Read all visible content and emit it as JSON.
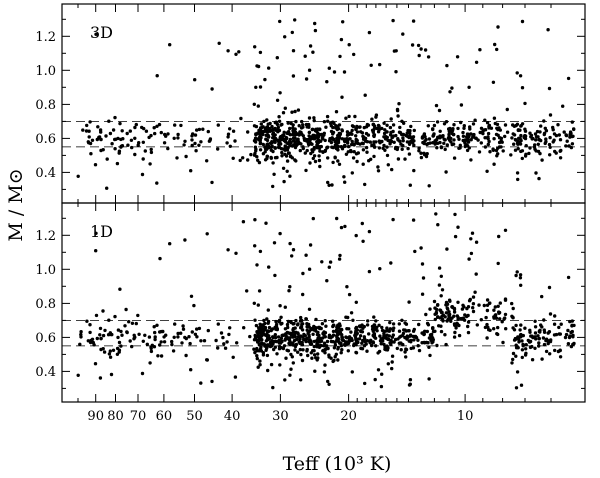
{
  "chart_data": {
    "type": "scatter",
    "panels": [
      {
        "label": "3D",
        "seed": 11,
        "extra_bump": false
      },
      {
        "label": "1D",
        "seed": 11,
        "extra_bump": true
      }
    ],
    "ylabel": "M / M⊙",
    "xlabel": "Teff (10³ K)",
    "x_scale": "log (reversed)",
    "xlim_kK": [
      110,
      4.9
    ],
    "ylim_msun": [
      0.22,
      1.39
    ],
    "x_ticks_kK": [
      90,
      80,
      70,
      60,
      50,
      40,
      30,
      20,
      10
    ],
    "y_ticks_msun": [
      0.4,
      0.6,
      0.8,
      1.0,
      1.2
    ],
    "y_tick_labels": [
      "0.4",
      "0.6",
      "0.8",
      "1.0",
      "1.2"
    ],
    "reference_lines_msun": [
      0.55,
      0.7
    ],
    "point_count_per_panel": 1100,
    "grid": false,
    "legend": "none"
  }
}
